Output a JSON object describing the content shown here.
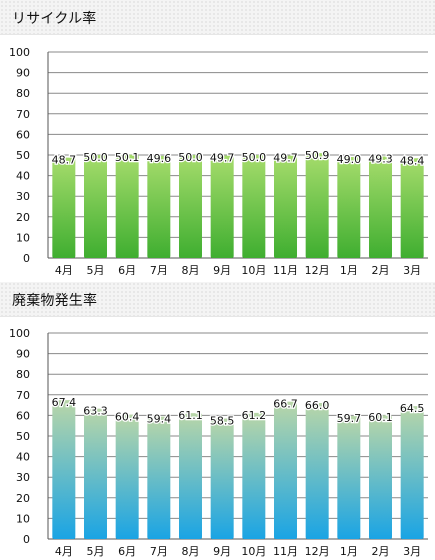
{
  "chart_data": [
    {
      "type": "bar",
      "title": "リサイクル率",
      "categories": [
        "4月",
        "5月",
        "6月",
        "7月",
        "8月",
        "9月",
        "10月",
        "11月",
        "12月",
        "1月",
        "2月",
        "3月"
      ],
      "values": [
        48.7,
        50.0,
        50.1,
        49.6,
        50.0,
        49.7,
        50.0,
        49.7,
        50.9,
        49.0,
        49.3,
        48.4
      ],
      "data_labels": [
        "48.7",
        "50.0",
        "50.1",
        "49.6",
        "50.0",
        "49.7",
        "50.0",
        "49.7",
        "50.9",
        "49.0",
        "49.3",
        "48.4"
      ],
      "ylim": [
        0,
        100
      ],
      "yticks": [
        "0",
        "10",
        "20",
        "30",
        "40",
        "50",
        "60",
        "70",
        "80",
        "90",
        "100"
      ],
      "grid": true,
      "bar_gradient": [
        "#a6dc6c",
        "#3fae30"
      ]
    },
    {
      "type": "bar",
      "title": "廃棄物発生率",
      "categories": [
        "4月",
        "5月",
        "6月",
        "7月",
        "8月",
        "9月",
        "10月",
        "11月",
        "12月",
        "1月",
        "2月",
        "3月"
      ],
      "values": [
        67.4,
        63.3,
        60.4,
        59.4,
        61.1,
        58.5,
        61.2,
        66.7,
        66.0,
        59.7,
        60.1,
        64.5
      ],
      "data_labels": [
        "67.4",
        "63.3",
        "60.4",
        "59.4",
        "61.1",
        "58.5",
        "61.2",
        "66.7",
        "66.0",
        "59.7",
        "60.1",
        "64.5"
      ],
      "ylim": [
        0,
        100
      ],
      "yticks": [
        "0",
        "10",
        "20",
        "30",
        "40",
        "50",
        "60",
        "70",
        "80",
        "90",
        "100"
      ],
      "grid": true,
      "bar_gradient": [
        "#b9d6a8",
        "#1aa4e4"
      ]
    }
  ]
}
